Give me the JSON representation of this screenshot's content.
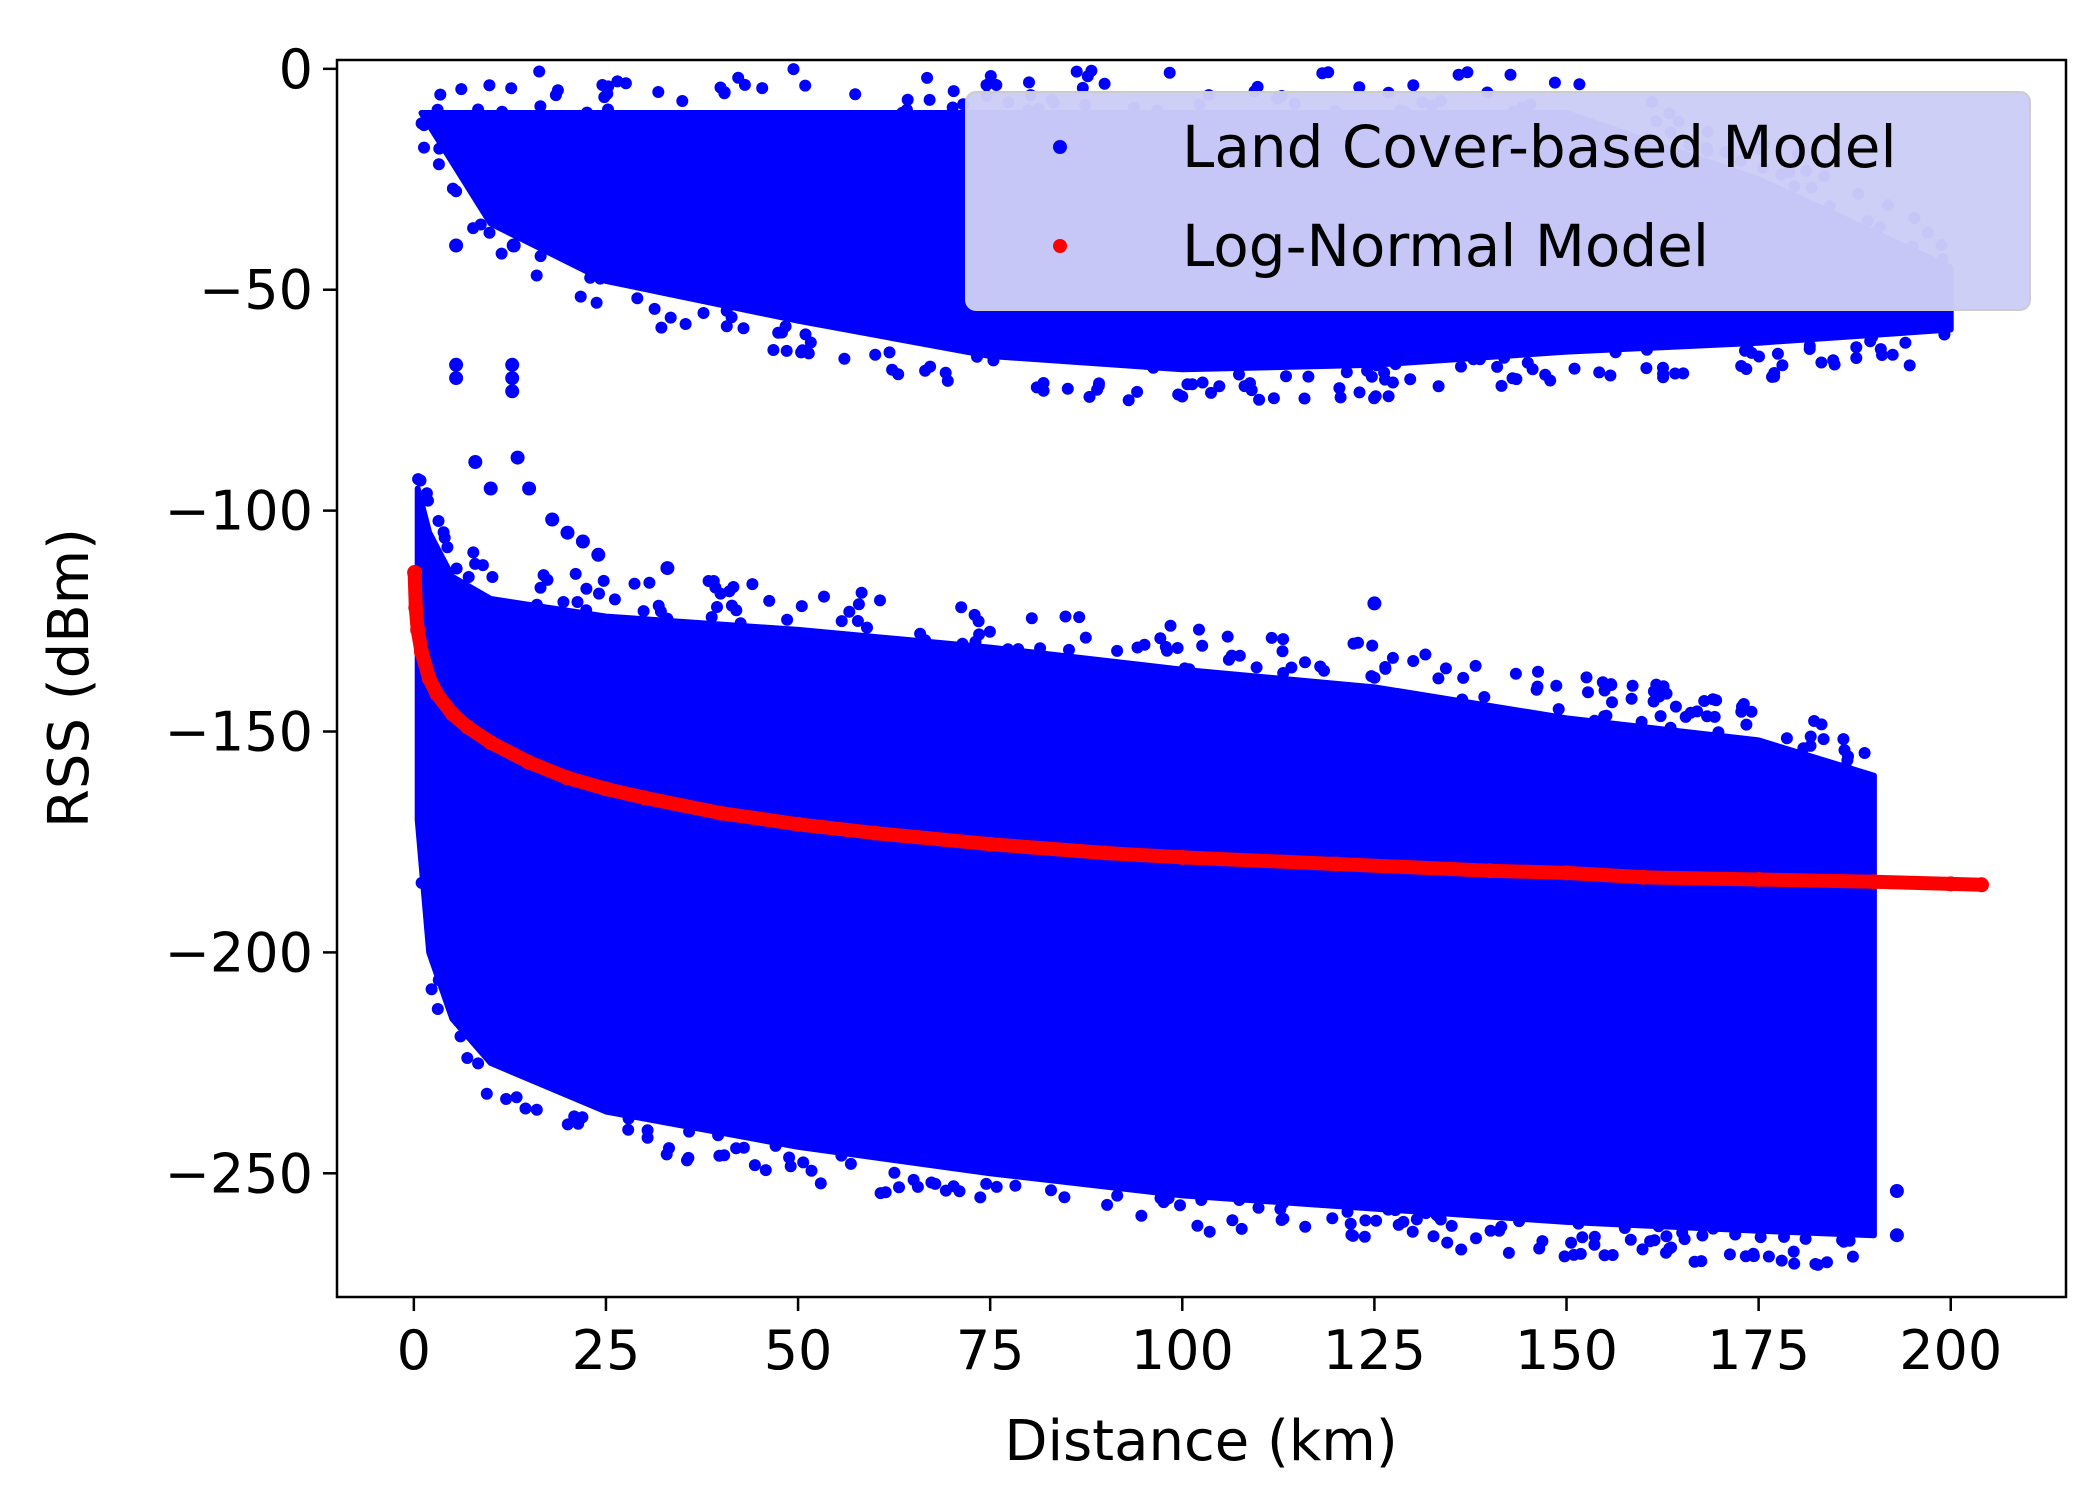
{
  "chart_data": {
    "type": "scatter",
    "title": "",
    "xlabel": "Distance (km)",
    "ylabel": "RSS (dBm)",
    "xlim": [
      -10,
      215
    ],
    "ylim": [
      -278,
      2
    ],
    "xticks": [
      0,
      25,
      50,
      75,
      100,
      125,
      150,
      175,
      200
    ],
    "yticks": [
      0,
      -50,
      -100,
      -150,
      -200,
      -250
    ],
    "xtick_labels": [
      "0",
      "25",
      "50",
      "75",
      "100",
      "125",
      "150",
      "175",
      "200"
    ],
    "ytick_labels": [
      "0",
      "−50",
      "−100",
      "−150",
      "−200",
      "−250"
    ],
    "grid": false,
    "legend_position": "top-right",
    "series": [
      {
        "name": "Land Cover-based Model",
        "color": "#0000ff",
        "marker": "dot",
        "upper_cluster": {
          "x": [
            1,
            10,
            25,
            50,
            75,
            100,
            125,
            150,
            175,
            200
          ],
          "y_top": [
            -10,
            -10,
            -10,
            -10,
            -10,
            -10,
            -10,
            -10,
            -25,
            -45
          ],
          "y_bottom": [
            -10,
            -35,
            -48,
            -57,
            -65,
            -68,
            -67,
            -64,
            -62,
            -59
          ]
        },
        "lower_cluster": {
          "x": [
            0.5,
            2,
            5,
            10,
            25,
            50,
            75,
            100,
            125,
            150,
            175,
            190
          ],
          "y_top": [
            -95,
            -105,
            -115,
            -120,
            -124,
            -127,
            -131,
            -136,
            -140,
            -147,
            -152,
            -160
          ],
          "y_bottom": [
            -170,
            -200,
            -215,
            -225,
            -236,
            -244,
            -250,
            -255,
            -258,
            -261,
            -263,
            -264
          ]
        },
        "outliers": [
          {
            "x": 5.5,
            "y": -40
          },
          {
            "x": 13,
            "y": -40
          },
          {
            "x": 5.5,
            "y": -67
          },
          {
            "x": 5.5,
            "y": -70
          },
          {
            "x": 12.8,
            "y": -67
          },
          {
            "x": 12.8,
            "y": -70
          },
          {
            "x": 12.8,
            "y": -73
          },
          {
            "x": 8,
            "y": -89
          },
          {
            "x": 13.5,
            "y": -88
          },
          {
            "x": 10,
            "y": -95
          },
          {
            "x": 15,
            "y": -95
          },
          {
            "x": 18,
            "y": -102
          },
          {
            "x": 20,
            "y": -105
          },
          {
            "x": 22,
            "y": -107
          },
          {
            "x": 24,
            "y": -110
          },
          {
            "x": 33,
            "y": -113
          },
          {
            "x": 125,
            "y": -121
          },
          {
            "x": 193,
            "y": -254
          },
          {
            "x": 193,
            "y": -264
          }
        ]
      },
      {
        "name": "Log-Normal Model",
        "color": "#ff0000",
        "marker": "dot",
        "x": [
          0.1,
          0.25,
          0.5,
          1,
          2,
          3,
          5,
          7,
          10,
          15,
          20,
          25,
          30,
          40,
          50,
          60,
          75,
          90,
          100,
          120,
          140,
          150,
          160,
          175,
          190,
          200,
          204
        ],
        "y": [
          -114,
          -122,
          -127,
          -132,
          -138,
          -141.5,
          -146,
          -149,
          -152.5,
          -157,
          -160.5,
          -163,
          -165,
          -168.5,
          -171,
          -173,
          -175.5,
          -177.5,
          -178.5,
          -180,
          -181.5,
          -182,
          -183,
          -183.5,
          -184,
          -184.5,
          -184.7
        ]
      }
    ]
  }
}
